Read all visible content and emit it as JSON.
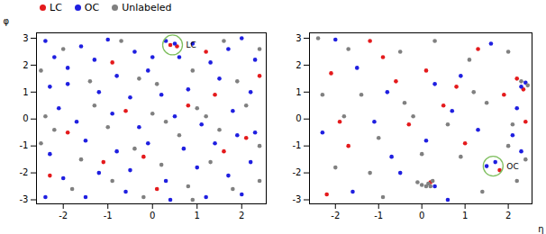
{
  "chart_data": [
    {
      "type": "scatter",
      "y_label": "φ",
      "legend": "upper left",
      "xlim": [
        -2.6,
        2.55
      ],
      "ylim": [
        -3.15,
        3.2
      ],
      "xticks": [
        -2,
        -1,
        0,
        1,
        2
      ],
      "yticks": [
        -3,
        -2,
        -1,
        0,
        1,
        2,
        3
      ],
      "annotations": [
        {
          "text": "LC",
          "x": 0.45,
          "y": 2.75
        }
      ],
      "series": [
        {
          "name": "LC",
          "color": "#e41a1c",
          "values": [
            [
              -1.9,
              -0.5
            ],
            [
              -0.9,
              2.1
            ],
            [
              0.4,
              2.75
            ],
            [
              0.55,
              2.7
            ],
            [
              1.2,
              2.5
            ],
            [
              -0.2,
              -1.4
            ],
            [
              0.8,
              0.5
            ],
            [
              1.6,
              -1.2
            ],
            [
              2.1,
              -0.7
            ],
            [
              -2.3,
              -2.1
            ],
            [
              0.1,
              -2.6
            ],
            [
              1.4,
              0.9
            ],
            [
              -1.1,
              -1.6
            ],
            [
              -0.6,
              0.3
            ],
            [
              2.4,
              1.6
            ]
          ]
        },
        {
          "name": "OC",
          "color": "#1f1fe0",
          "values": [
            [
              -2.4,
              2.9
            ],
            [
              -2.2,
              2.3
            ],
            [
              -1.9,
              1.9
            ],
            [
              -2.3,
              1.2
            ],
            [
              -1.6,
              2.7
            ],
            [
              -1.3,
              2.2
            ],
            [
              -1.0,
              2.95
            ],
            [
              -0.8,
              1.6
            ],
            [
              -0.4,
              2.5
            ],
            [
              -0.1,
              1.8
            ],
            [
              0.3,
              2.9
            ],
            [
              0.6,
              2.3
            ],
            [
              0.9,
              2.8
            ],
            [
              1.3,
              2.1
            ],
            [
              1.7,
              2.6
            ],
            [
              2.0,
              3.0
            ],
            [
              2.3,
              2.2
            ],
            [
              1.5,
              1.5
            ],
            [
              2.2,
              1.0
            ],
            [
              0.8,
              1.1
            ],
            [
              0.2,
              0.9
            ],
            [
              -0.5,
              0.8
            ],
            [
              -1.2,
              1.0
            ],
            [
              -2.1,
              0.4
            ],
            [
              -1.7,
              -0.1
            ],
            [
              -0.9,
              0.2
            ],
            [
              -0.3,
              -0.3
            ],
            [
              0.5,
              0.1
            ],
            [
              1.1,
              -0.2
            ],
            [
              1.8,
              0.3
            ],
            [
              2.3,
              -0.5
            ],
            [
              1.4,
              -0.9
            ],
            [
              0.7,
              -1.1
            ],
            [
              -0.1,
              -0.9
            ],
            [
              -0.8,
              -1.2
            ],
            [
              -1.5,
              -0.8
            ],
            [
              -2.3,
              -1.3
            ],
            [
              -2.0,
              -2.2
            ],
            [
              -1.2,
              -2.0
            ],
            [
              -0.5,
              -1.9
            ],
            [
              0.3,
              -2.3
            ],
            [
              1.0,
              -1.8
            ],
            [
              1.7,
              -2.1
            ],
            [
              2.2,
              -1.6
            ],
            [
              2.0,
              -2.8
            ],
            [
              1.2,
              -2.9
            ],
            [
              0.4,
              -3.0
            ],
            [
              -0.6,
              -2.7
            ],
            [
              -1.5,
              -2.9
            ],
            [
              -2.4,
              -2.9
            ],
            [
              0.5,
              2.8
            ],
            [
              1.9,
              -0.6
            ],
            [
              -1.9,
              1.3
            ],
            [
              0.0,
              2.3
            ]
          ]
        },
        {
          "name": "Unlabeled",
          "color": "#808080",
          "values": [
            [
              -2.5,
              1.8
            ],
            [
              -2.0,
              2.6
            ],
            [
              -1.4,
              1.4
            ],
            [
              -0.7,
              2.9
            ],
            [
              0.1,
              1.3
            ],
            [
              0.9,
              1.8
            ],
            [
              1.6,
              2.9
            ],
            [
              2.4,
              2.6
            ],
            [
              2.1,
              0.5
            ],
            [
              1.0,
              0.4
            ],
            [
              0.0,
              0.2
            ],
            [
              -1.0,
              -0.3
            ],
            [
              -2.2,
              -0.4
            ],
            [
              -1.6,
              -1.5
            ],
            [
              -0.4,
              -1.1
            ],
            [
              0.6,
              -0.6
            ],
            [
              1.5,
              -0.4
            ],
            [
              2.4,
              -1.0
            ],
            [
              1.3,
              -1.6
            ],
            [
              0.2,
              -1.7
            ],
            [
              -0.9,
              -2.3
            ],
            [
              -1.8,
              -2.6
            ],
            [
              -2.5,
              -0.9
            ],
            [
              0.8,
              -2.5
            ],
            [
              1.8,
              -2.6
            ],
            [
              2.4,
              -2.3
            ],
            [
              -0.2,
              -2.9
            ],
            [
              -1.3,
              0.5
            ],
            [
              0.3,
              -0.1
            ],
            [
              1.9,
              1.4
            ],
            [
              -0.3,
              1.5
            ],
            [
              -2.4,
              0.1
            ],
            [
              0.9,
              -3.0
            ],
            [
              1.2,
              0.1
            ]
          ]
        }
      ]
    },
    {
      "type": "scatter",
      "x_label": "η",
      "xlim": [
        -2.6,
        2.55
      ],
      "ylim": [
        -3.15,
        3.2
      ],
      "xticks": [
        -2,
        -1,
        0,
        1,
        2
      ],
      "yticks": [
        -3,
        -2,
        -1,
        0,
        1,
        2,
        3
      ],
      "annotations": [
        {
          "text": "OC",
          "x": 1.65,
          "y": -1.75
        }
      ],
      "series": [
        {
          "name": "LC",
          "color": "#e41a1c",
          "values": [
            [
              -1.9,
              -0.1
            ],
            [
              -1.2,
              2.9
            ],
            [
              -2.1,
              1.7
            ],
            [
              -0.6,
              1.4
            ],
            [
              0.1,
              1.8
            ],
            [
              0.8,
              1.2
            ],
            [
              1.3,
              2.6
            ],
            [
              2.2,
              1.5
            ],
            [
              2.35,
              1.1
            ],
            [
              1.8,
              -1.9
            ],
            [
              2.4,
              -0.1
            ],
            [
              -1.7,
              -1.0
            ],
            [
              -0.3,
              -0.2
            ],
            [
              0.2,
              -2.35
            ],
            [
              1.0,
              -0.9
            ],
            [
              -2.2,
              -2.8
            ],
            [
              0.5,
              0.5
            ],
            [
              -0.9,
              2.3
            ],
            [
              1.9,
              0.9
            ]
          ]
        },
        {
          "name": "OC",
          "color": "#1f1fe0",
          "values": [
            [
              -2.0,
              2.95
            ],
            [
              -1.5,
              1.9
            ],
            [
              -0.8,
              1.0
            ],
            [
              0.3,
              1.3
            ],
            [
              0.9,
              1.6
            ],
            [
              1.6,
              2.8
            ],
            [
              2.3,
              1.2
            ],
            [
              2.4,
              1.35
            ],
            [
              2.2,
              0.4
            ],
            [
              -2.3,
              -0.5
            ],
            [
              -1.1,
              -0.1
            ],
            [
              0.1,
              -0.8
            ],
            [
              1.3,
              -0.4
            ],
            [
              1.5,
              -1.75
            ],
            [
              1.7,
              -1.6
            ],
            [
              -0.5,
              -2.0
            ],
            [
              0.3,
              -2.5
            ],
            [
              0.6,
              -3.0
            ],
            [
              -1.6,
              -2.7
            ],
            [
              2.3,
              -1.2
            ],
            [
              -0.7,
              -1.4
            ],
            [
              0.7,
              0.3
            ],
            [
              2.1,
              -0.6
            ]
          ]
        },
        {
          "name": "Unlabeled",
          "color": "#808080",
          "values": [
            [
              -2.4,
              3.0
            ],
            [
              -1.7,
              2.6
            ],
            [
              -0.5,
              2.5
            ],
            [
              0.3,
              2.9
            ],
            [
              1.1,
              2.2
            ],
            [
              2.0,
              2.5
            ],
            [
              2.3,
              1.4
            ],
            [
              2.45,
              1.25
            ],
            [
              2.1,
              -0.2
            ],
            [
              1.5,
              0.6
            ],
            [
              0.6,
              -0.2
            ],
            [
              -0.4,
              0.6
            ],
            [
              -1.4,
              0.9
            ],
            [
              -2.3,
              0.9
            ],
            [
              -1.0,
              -0.7
            ],
            [
              0.0,
              -1.3
            ],
            [
              0.9,
              -1.4
            ],
            [
              2.4,
              -1.5
            ],
            [
              2.2,
              -2.3
            ],
            [
              0.15,
              -2.4
            ],
            [
              0.25,
              -2.3
            ],
            [
              0.1,
              -2.5
            ],
            [
              0.2,
              -2.5
            ],
            [
              0.0,
              -2.45
            ],
            [
              -0.1,
              -2.35
            ],
            [
              -1.2,
              -2.0
            ],
            [
              -2.0,
              -1.8
            ],
            [
              -0.9,
              -2.9
            ],
            [
              1.4,
              -2.7
            ],
            [
              -0.2,
              0.1
            ],
            [
              1.2,
              1.0
            ],
            [
              -1.8,
              0.1
            ],
            [
              2.0,
              -1.0
            ]
          ]
        }
      ]
    }
  ]
}
